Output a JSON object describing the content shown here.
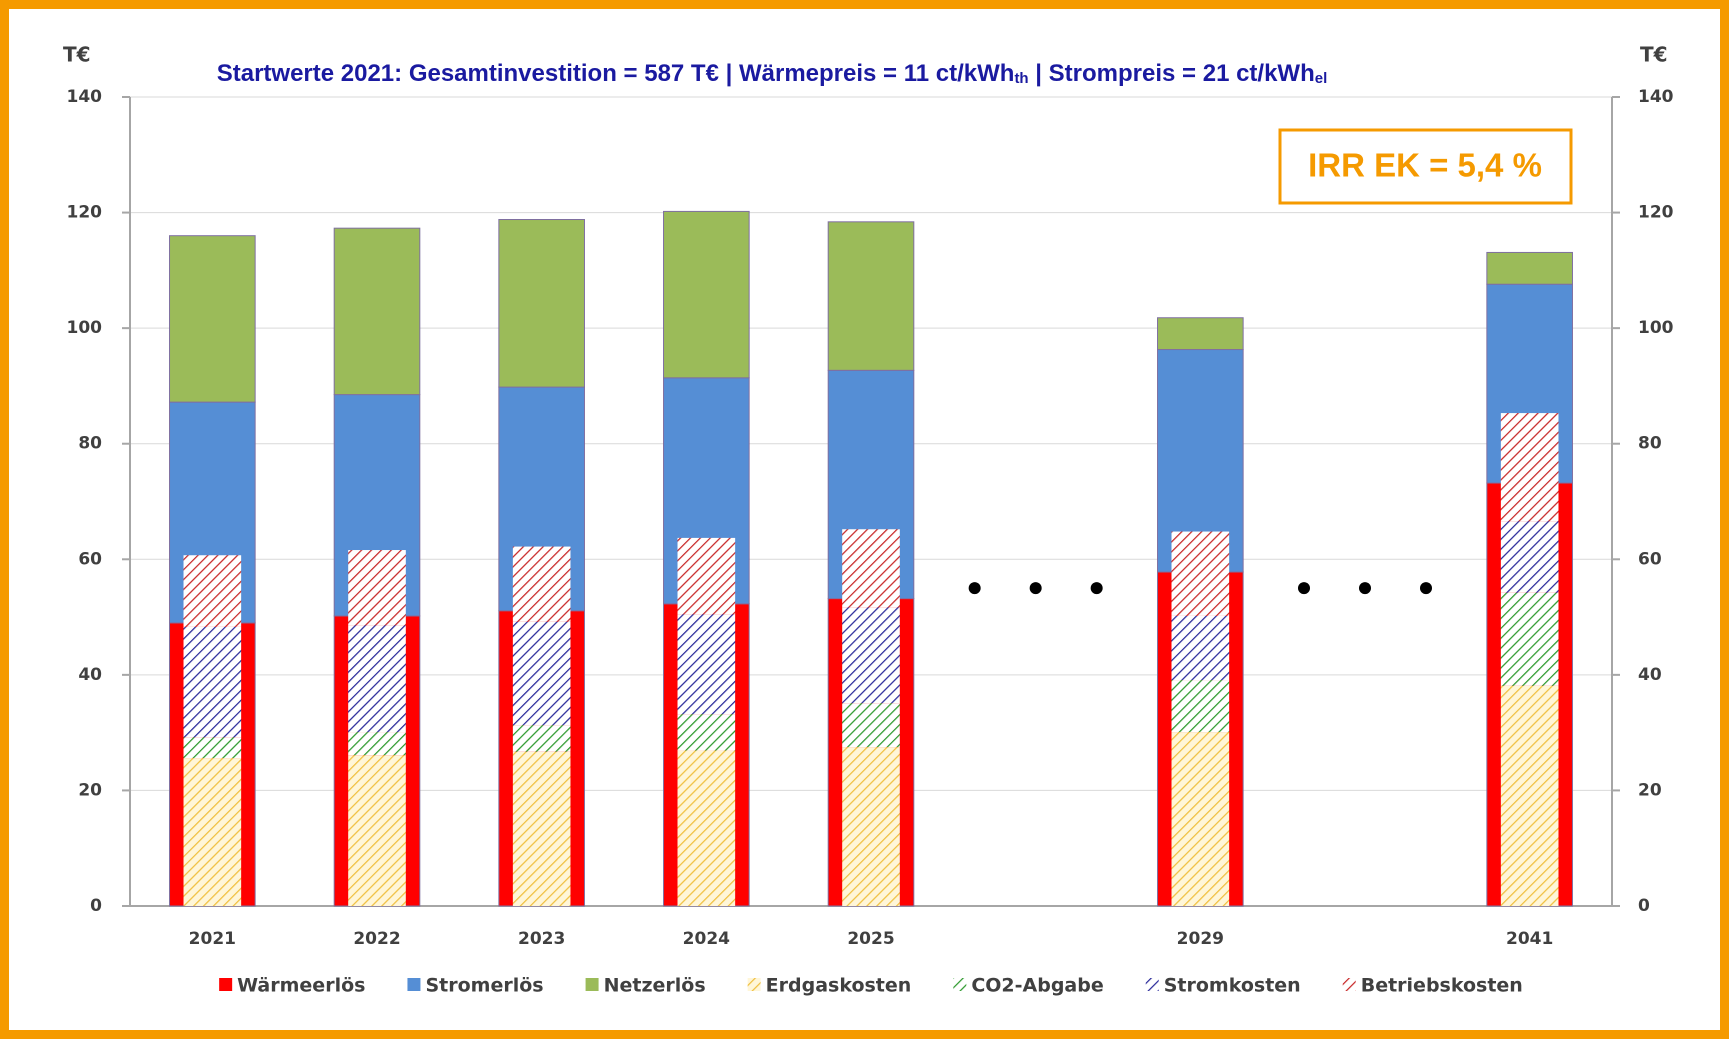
{
  "chart_data": {
    "type": "stacked_bar",
    "title": [
      "Startwerte 2021: Gesamtinvestition = 587 T€  |  Wärmepreis  = 11 ct/kWh",
      "th",
      "  |  Strompreis = 21 ct/kWh",
      "el"
    ],
    "ylabel": "T€",
    "y2label": "T€",
    "annotation": "IRR EK = 5,4 %",
    "categories": [
      "2021",
      "2022",
      "2023",
      "2024",
      "2025",
      null,
      "2029",
      null,
      "2041"
    ],
    "series": [
      {
        "name": "Wärmeerlös",
        "color": "#ff0000",
        "stack": "revenue",
        "values": [
          49.0,
          50.2,
          51.1,
          52.3,
          53.2,
          null,
          57.8,
          null,
          73.2
        ]
      },
      {
        "name": "Stromerlös",
        "color": "#558ed5",
        "stack": "revenue",
        "values": [
          38.2,
          38.3,
          38.7,
          39.1,
          39.5,
          null,
          38.5,
          null,
          34.4
        ]
      },
      {
        "name": "Netzerlös",
        "color": "#9bbb59",
        "stack": "revenue",
        "values": [
          28.8,
          28.8,
          29.0,
          28.8,
          25.7,
          null,
          5.5,
          null,
          5.5
        ]
      },
      {
        "name": "Erdgaskosten",
        "color": "#f0c040",
        "background": "#fff6d8",
        "hatch": true,
        "stack": "cost",
        "values": [
          25.6,
          26.1,
          26.7,
          26.9,
          27.5,
          null,
          30.1,
          null,
          38.1
        ]
      },
      {
        "name": "CO2-Abgabe",
        "color": "#2e9a2e",
        "background": "#ffffff",
        "hatch": true,
        "stack": "cost",
        "values": [
          3.6,
          4.0,
          4.6,
          6.3,
          7.6,
          null,
          9.0,
          null,
          16.1
        ]
      },
      {
        "name": "Stromkosten",
        "color": "#2a2a9a",
        "background": "#ffffff",
        "hatch": true,
        "stack": "cost",
        "values": [
          19.1,
          18.5,
          17.9,
          17.3,
          16.6,
          null,
          11.1,
          null,
          12.4
        ]
      },
      {
        "name": "Betriebskosten",
        "color": "#c82828",
        "background": "#ffffff",
        "hatch": true,
        "stack": "cost",
        "values": [
          12.4,
          13.0,
          13.0,
          13.2,
          13.5,
          null,
          14.6,
          null,
          18.7
        ]
      }
    ],
    "ylim": [
      0,
      140
    ],
    "yticks": [
      0,
      20,
      40,
      60,
      80,
      100,
      120,
      140
    ],
    "y2lim": [
      0,
      140
    ],
    "y2ticks": [
      0,
      20,
      40,
      60,
      80,
      100,
      120,
      140
    ],
    "grid": true,
    "legend": "bottom"
  }
}
